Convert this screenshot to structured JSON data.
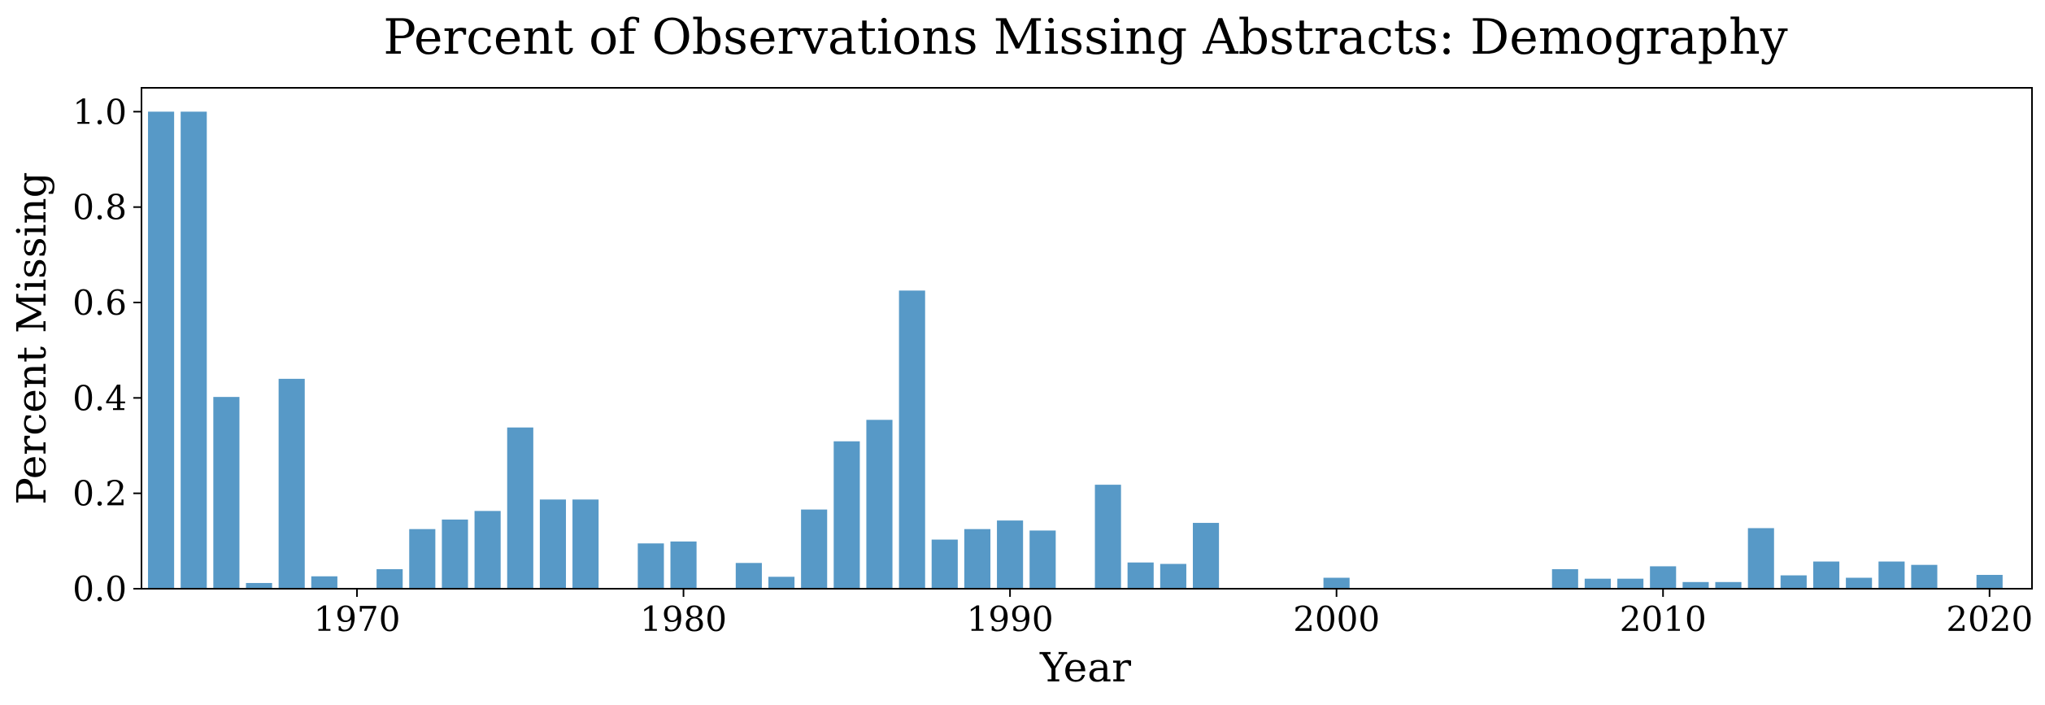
{
  "chart_data": {
    "type": "bar",
    "title": "Percent of Observations Missing Abstracts: Demography",
    "xlabel": "Year",
    "ylabel": "Percent Missing",
    "xlim": [
      1963.4,
      2021.3
    ],
    "ylim": [
      0,
      1.05
    ],
    "grid": false,
    "bar_color": "#5799c7",
    "x_ticks": [
      1970,
      1980,
      1990,
      2000,
      2010,
      2020
    ],
    "y_ticks": [
      0.0,
      0.2,
      0.4,
      0.6,
      0.8,
      1.0
    ],
    "y_tick_labels": [
      "0.0",
      "0.2",
      "0.4",
      "0.6",
      "0.8",
      "1.0"
    ],
    "x": [
      1964,
      1965,
      1966,
      1967,
      1968,
      1969,
      1971,
      1972,
      1973,
      1974,
      1975,
      1976,
      1977,
      1979,
      1980,
      1982,
      1983,
      1984,
      1985,
      1986,
      1987,
      1988,
      1989,
      1990,
      1991,
      1993,
      1994,
      1995,
      1996,
      2000,
      2007,
      2008,
      2009,
      2010,
      2011,
      2012,
      2013,
      2014,
      2015,
      2016,
      2017,
      2018,
      2020
    ],
    "values": [
      1.0,
      1.0,
      0.402,
      0.012,
      0.44,
      0.026,
      0.041,
      0.125,
      0.145,
      0.163,
      0.338,
      0.187,
      0.187,
      0.095,
      0.099,
      0.054,
      0.025,
      0.166,
      0.309,
      0.354,
      0.625,
      0.103,
      0.125,
      0.143,
      0.122,
      0.218,
      0.055,
      0.052,
      0.138,
      0.023,
      0.041,
      0.021,
      0.021,
      0.047,
      0.014,
      0.014,
      0.127,
      0.028,
      0.057,
      0.023,
      0.057,
      0.05,
      0.029
    ]
  }
}
